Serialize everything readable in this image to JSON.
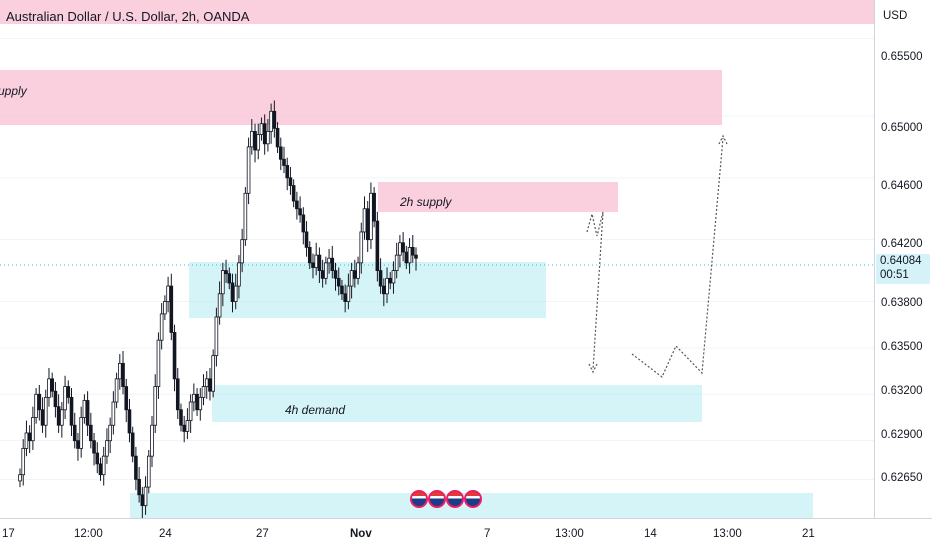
{
  "header": {
    "title": "Australian Dollar / U.S. Dollar, 2h, OANDA"
  },
  "price_axis": {
    "currency": "USD",
    "last_price": "0.64084",
    "countdown": "00:51",
    "ticks": [
      "0.65500",
      "0.65000",
      "0.64600",
      "0.64200",
      "0.63800",
      "0.63500",
      "0.63200",
      "0.62900",
      "0.62650"
    ]
  },
  "time_axis": {
    "ticks": [
      "17",
      "12:00",
      "24",
      "27",
      "Nov",
      "7",
      "13:00",
      "14",
      "13:00",
      "21"
    ]
  },
  "colors": {
    "supply": "#f8bbd0",
    "demand": "#b2ebf2",
    "bull": "#ffffff",
    "bear": "#131722",
    "tag": "#d4f2f8",
    "projection": "#555555"
  },
  "zones": {
    "top_supply": {
      "label": "upply"
    },
    "supply_2h": {
      "label": "2h supply"
    },
    "demand_mid": {
      "label": ""
    },
    "demand_4h": {
      "label": "4h demand"
    },
    "demand_bottom": {
      "label": ""
    }
  },
  "events": {
    "icons": [
      "us-flag-icon",
      "eu-flag-icon",
      "au-flag-icon",
      "us-flag-icon"
    ]
  },
  "chart_data": {
    "type": "candlestick",
    "title": "Australian Dollar / U.S. Dollar, 2h, OANDA",
    "symbol": "AUDUSD",
    "interval": "2h",
    "source": "OANDA",
    "ylim": [
      0.624,
      0.6575
    ],
    "y_ticks": [
      0.655,
      0.65,
      0.646,
      0.642,
      0.638,
      0.635,
      0.632,
      0.629,
      0.6265
    ],
    "x_ticks": [
      "17",
      "12:00",
      "24",
      "27",
      "Nov",
      "7",
      "13:00",
      "14",
      "13:00",
      "21"
    ],
    "last_price": 0.64084,
    "zones": [
      {
        "label": "upply",
        "kind": "supply",
        "from": 0.65,
        "to": 0.6556
      },
      {
        "label": "",
        "kind": "supply",
        "from": 0.6575,
        "to": 0.6575
      },
      {
        "label": "2h supply",
        "kind": "supply",
        "from": 0.6444,
        "to": 0.6466
      },
      {
        "label": "",
        "kind": "demand",
        "from": 0.6372,
        "to": 0.6412
      },
      {
        "label": "4h demand",
        "kind": "demand",
        "from": 0.6303,
        "to": 0.6331
      },
      {
        "label": "",
        "kind": "demand",
        "from": 0.624,
        "to": 0.6261
      }
    ],
    "closes": [
      0.6268,
      0.6285,
      0.6295,
      0.629,
      0.6305,
      0.632,
      0.631,
      0.63,
      0.6318,
      0.633,
      0.6322,
      0.6312,
      0.63,
      0.631,
      0.6325,
      0.6318,
      0.63,
      0.629,
      0.6285,
      0.6305,
      0.6316,
      0.63,
      0.629,
      0.6282,
      0.6275,
      0.6268,
      0.628,
      0.629,
      0.63,
      0.6315,
      0.633,
      0.634,
      0.6325,
      0.631,
      0.6295,
      0.628,
      0.6265,
      0.6255,
      0.6248,
      0.626,
      0.628,
      0.63,
      0.6325,
      0.6355,
      0.6372,
      0.638,
      0.639,
      0.636,
      0.633,
      0.631,
      0.63,
      0.6296,
      0.6303,
      0.6315,
      0.632,
      0.631,
      0.6318,
      0.6325,
      0.633,
      0.6322,
      0.6345,
      0.637,
      0.6385,
      0.64,
      0.6398,
      0.6392,
      0.638,
      0.639,
      0.6405,
      0.642,
      0.645,
      0.648,
      0.649,
      0.6478,
      0.6488,
      0.6495,
      0.6482,
      0.649,
      0.6503,
      0.6492,
      0.648,
      0.6472,
      0.6468,
      0.646,
      0.6455,
      0.6445,
      0.644,
      0.6436,
      0.6425,
      0.6415,
      0.6405,
      0.6402,
      0.641,
      0.64,
      0.6395,
      0.6405,
      0.6408,
      0.64,
      0.6395,
      0.639,
      0.6385,
      0.638,
      0.639,
      0.64,
      0.6395,
      0.6405,
      0.6425,
      0.644,
      0.642,
      0.645,
      0.6432,
      0.64,
      0.639,
      0.6385,
      0.6395,
      0.6392,
      0.64,
      0.641,
      0.6418,
      0.6412,
      0.6405,
      0.6415,
      0.641,
      0.6408
    ]
  }
}
